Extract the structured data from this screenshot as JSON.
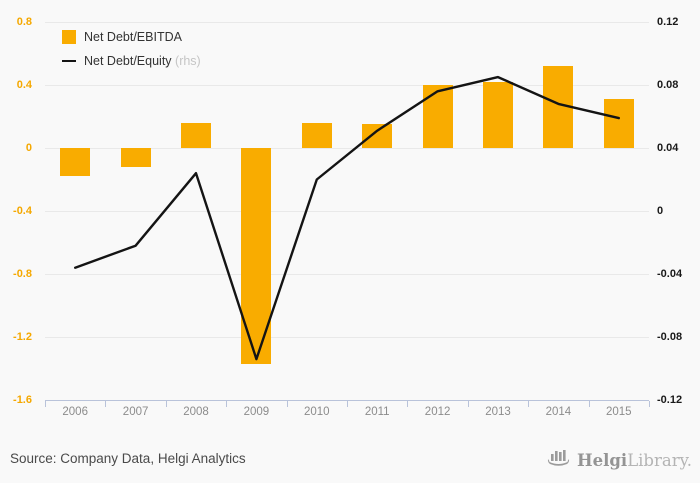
{
  "chart_data": {
    "type": "combo-bar-line",
    "categories": [
      "2006",
      "2007",
      "2008",
      "2009",
      "2010",
      "2011",
      "2012",
      "2013",
      "2014",
      "2015"
    ],
    "series": [
      {
        "name": "Net Debt/EBITDA",
        "type": "bar",
        "axis": "left",
        "color": "#f9ac00",
        "values": [
          -0.18,
          -0.12,
          0.16,
          -1.37,
          0.16,
          0.15,
          0.4,
          0.42,
          0.52,
          0.31
        ]
      },
      {
        "name": "Net Debt/Equity",
        "axis_note": "(rhs)",
        "type": "line",
        "axis": "right",
        "color": "#141414",
        "values": [
          -0.036,
          -0.022,
          0.024,
          -0.094,
          0.02,
          0.051,
          0.076,
          0.085,
          0.068,
          0.059
        ]
      }
    ],
    "left_axis": {
      "ticks": [
        "0.8",
        "0.4",
        "0",
        "-0.4",
        "-0.8",
        "-1.2",
        "-1.6"
      ],
      "max": 0.8,
      "min": -1.6,
      "color": "#f5a800"
    },
    "right_axis": {
      "ticks": [
        "0.12",
        "0.08",
        "0.04",
        "0",
        "-0.04",
        "-0.08",
        "-0.12"
      ],
      "max": 0.12,
      "min": -0.12,
      "color": "#1a1a1a"
    },
    "grid": true,
    "legend_position": "top-left",
    "title": ""
  },
  "footer": {
    "source": "Source: Company Data, Helgi Analytics",
    "logo_bold": "Helgi",
    "logo_light": "Library."
  }
}
